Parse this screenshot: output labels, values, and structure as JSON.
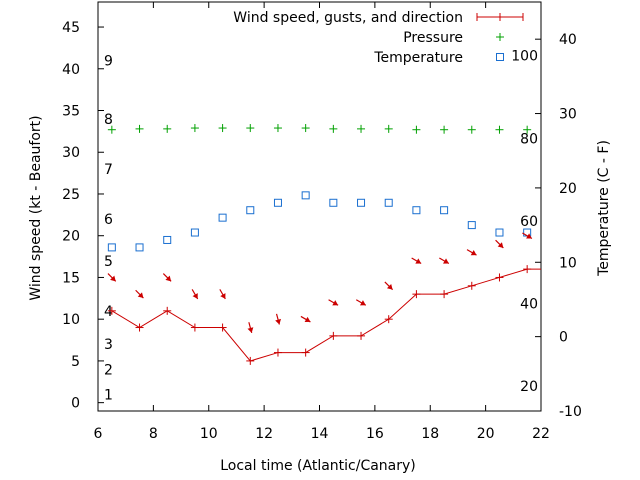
{
  "chart_data": {
    "type": "line",
    "xlabel": "Local time (Atlantic/Canary)",
    "ylabel_left": "Wind speed (kt - Beaufort)",
    "ylabel_right": "Temperature (C - F)",
    "xlim": [
      6,
      22
    ],
    "ylim_left": [
      -1,
      48
    ],
    "ylim_right": [
      -10,
      45
    ],
    "x_ticks": [
      6,
      8,
      10,
      12,
      14,
      16,
      18,
      20,
      22
    ],
    "y_left_ticks": [
      0,
      5,
      10,
      15,
      20,
      25,
      30,
      35,
      40,
      45
    ],
    "y_right_ticks": [
      -10,
      0,
      10,
      20,
      30,
      40
    ],
    "beaufort_labels": [
      {
        "label": "1",
        "kt": 1
      },
      {
        "label": "2",
        "kt": 4
      },
      {
        "label": "3",
        "kt": 7
      },
      {
        "label": "4",
        "kt": 11
      },
      {
        "label": "5",
        "kt": 17
      },
      {
        "label": "6",
        "kt": 22
      },
      {
        "label": "7",
        "kt": 28
      },
      {
        "label": "8",
        "kt": 34
      },
      {
        "label": "9",
        "kt": 41
      }
    ],
    "fahrenheit_labels": [
      {
        "label": "20",
        "celsius": -6.67
      },
      {
        "label": "40",
        "celsius": 4.44
      },
      {
        "label": "60",
        "celsius": 15.56
      },
      {
        "label": "80",
        "celsius": 26.67
      },
      {
        "label": "100",
        "celsius": 37.78
      }
    ],
    "legend_position": "top-right",
    "series": [
      {
        "name": "Wind speed, gusts, and direction",
        "axis": "left",
        "style": "line+marker",
        "color": "#cc0000",
        "x": [
          6.5,
          7.5,
          8.5,
          9.5,
          10.5,
          11.5,
          12.5,
          13.5,
          14.5,
          15.5,
          16.5,
          17.5,
          18.5,
          19.5,
          20.5,
          21.5,
          22
        ],
        "values": [
          11,
          9,
          11,
          9,
          9,
          5,
          6,
          6,
          8,
          8,
          10,
          13,
          13,
          14,
          15,
          16,
          16
        ],
        "direction_arrows": [
          {
            "x": 6.5,
            "kt": 15,
            "angle_deg": 45
          },
          {
            "x": 7.5,
            "kt": 13,
            "angle_deg": 45
          },
          {
            "x": 8.5,
            "kt": 15,
            "angle_deg": 45
          },
          {
            "x": 9.5,
            "kt": 13,
            "angle_deg": 60
          },
          {
            "x": 10.5,
            "kt": 13,
            "angle_deg": 60
          },
          {
            "x": 11.5,
            "kt": 9,
            "angle_deg": 75
          },
          {
            "x": 12.5,
            "kt": 10,
            "angle_deg": 75
          },
          {
            "x": 13.5,
            "kt": 10,
            "angle_deg": 30
          },
          {
            "x": 14.5,
            "kt": 12,
            "angle_deg": 30
          },
          {
            "x": 15.5,
            "kt": 12,
            "angle_deg": 30
          },
          {
            "x": 16.5,
            "kt": 14,
            "angle_deg": 45
          },
          {
            "x": 17.5,
            "kt": 17,
            "angle_deg": 30
          },
          {
            "x": 18.5,
            "kt": 17,
            "angle_deg": 30
          },
          {
            "x": 19.5,
            "kt": 18,
            "angle_deg": 30
          },
          {
            "x": 20.5,
            "kt": 19,
            "angle_deg": 45
          },
          {
            "x": 21.5,
            "kt": 20,
            "angle_deg": 30
          }
        ]
      },
      {
        "name": "Pressure",
        "axis": "left",
        "style": "plus",
        "color": "#00a000",
        "x": [
          6.5,
          7.5,
          8.5,
          9.5,
          10.5,
          11.5,
          12.5,
          13.5,
          14.5,
          15.5,
          16.5,
          17.5,
          18.5,
          19.5,
          20.5,
          21.5
        ],
        "values": [
          32.7,
          32.8,
          32.8,
          32.9,
          32.9,
          32.9,
          32.9,
          32.9,
          32.8,
          32.8,
          32.8,
          32.7,
          32.7,
          32.7,
          32.7,
          32.7
        ]
      },
      {
        "name": "Temperature",
        "axis": "right",
        "style": "square",
        "color": "#1a6fd0",
        "x": [
          6.5,
          7.5,
          8.5,
          9.5,
          10.5,
          11.5,
          12.5,
          13.5,
          14.5,
          15.5,
          16.5,
          17.5,
          18.5,
          19.5,
          20.5,
          21.5
        ],
        "values": [
          12,
          12,
          13,
          14,
          16,
          17,
          18,
          19,
          18,
          18,
          18,
          17,
          17,
          15,
          14,
          14
        ]
      }
    ]
  }
}
